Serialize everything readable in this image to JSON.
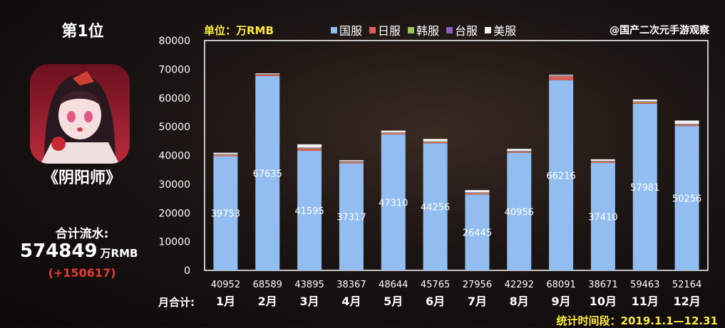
{
  "left_panel": {
    "rank": "第1位",
    "game_name": "《阴阳师》",
    "total_label": "合计流水:",
    "total_value": "574849",
    "total_unit": "万RMB",
    "total_diff": "(+150617)",
    "icon_name": "onmyoji-game-icon"
  },
  "header": {
    "unit": "单位：万RMB",
    "watermark": "@国产二次元手游观察"
  },
  "footer": {
    "month_total_label": "月合计:",
    "period": "统计时间段：2019.1.1—12.31"
  },
  "colors": {
    "cn": "#92bdf0",
    "jp": "#e05a55",
    "kr": "#9cc75a",
    "tw": "#8e5bc7",
    "us": "#f3f3f3",
    "axis_text": "#ffffff",
    "highlight": "#ffeb3b",
    "diff": "#e53935"
  },
  "chart_data": {
    "type": "bar",
    "stacked": true,
    "categories": [
      "1月",
      "2月",
      "3月",
      "4月",
      "5月",
      "6月",
      "7月",
      "8月",
      "9月",
      "10月",
      "11月",
      "12月"
    ],
    "series": [
      {
        "name": "国服",
        "values": [
          39753,
          67635,
          41595,
          37317,
          47310,
          44256,
          26445,
          40956,
          66216,
          37410,
          57981,
          50256
        ]
      },
      {
        "name": "日服",
        "values": [
          400,
          450,
          700,
          400,
          380,
          350,
          380,
          320,
          1260,
          360,
          420,
          400
        ]
      },
      {
        "name": "韩服",
        "values": [
          200,
          150,
          250,
          180,
          180,
          200,
          180,
          140,
          200,
          200,
          300,
          200
        ]
      },
      {
        "name": "台服",
        "values": [
          150,
          150,
          200,
          150,
          130,
          100,
          150,
          140,
          180,
          150,
          180,
          150
        ]
      },
      {
        "name": "美服",
        "values": [
          449,
          204,
          1150,
          320,
          644,
          859,
          801,
          736,
          235,
          551,
          582,
          1158
        ]
      }
    ],
    "month_totals": [
      "40952",
      "68589",
      "43895",
      "38367",
      "48644",
      "45765",
      "27956",
      "42292",
      "68091",
      "38671",
      "59463",
      "52164"
    ],
    "ylim": [
      0,
      80000
    ],
    "yticks": [
      0,
      10000,
      20000,
      30000,
      40000,
      50000,
      60000,
      70000,
      80000
    ],
    "grid": false,
    "legend_position": "top"
  }
}
